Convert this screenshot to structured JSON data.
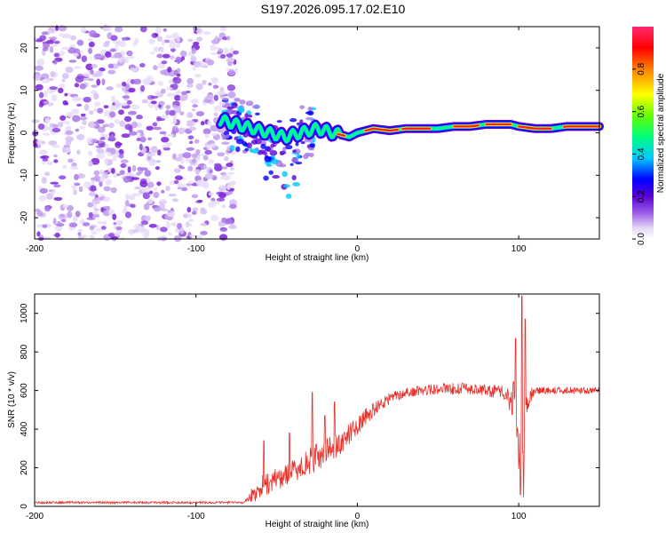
{
  "title": "S197.2026.095.17.02.E10",
  "colors": {
    "axis": "#000000",
    "snr_line": "#e8302a",
    "colormap": [
      "#ffffff",
      "#e6d9f7",
      "#b98ae9",
      "#8a2be2",
      "#5a00d8",
      "#0000ff",
      "#00c8ff",
      "#00ff80",
      "#80ff00",
      "#ffff00",
      "#ff8000",
      "#ff0000",
      "#ff2a6e"
    ]
  },
  "chart_data": [
    {
      "type": "heatmap",
      "xlabel": "Height of straight line (km)",
      "ylabel": "Frequency (Hz)",
      "xlim": [
        -200,
        150
      ],
      "ylim": [
        -25,
        25
      ],
      "xticks": [
        -200,
        -100,
        0,
        100
      ],
      "xtick_labels": [
        "-200",
        "-100",
        "0",
        "100"
      ],
      "yticks": [
        20,
        10,
        0,
        -10,
        -20
      ],
      "ytick_labels": [
        "20",
        "10",
        "0",
        "-10",
        "-20"
      ],
      "ridge": {
        "x": [
          -85,
          -75,
          -65,
          -55,
          -45,
          -35,
          -25,
          -15,
          -5,
          0,
          10,
          20,
          30,
          40,
          50,
          60,
          70,
          80,
          90,
          95,
          100,
          110,
          120,
          130,
          140,
          150
        ],
        "freq": [
          3,
          2,
          1,
          0,
          -1,
          0,
          1,
          0,
          -1,
          0,
          1,
          0.5,
          1,
          1,
          1,
          1.5,
          1.5,
          2,
          2,
          2,
          1.5,
          1,
          1,
          1.5,
          1.5,
          1.5
        ]
      },
      "noise_region_x": [
        -200,
        -75
      ]
    },
    {
      "type": "colorbar",
      "label": "Normalized spectral amplitude",
      "range": [
        0.0,
        1.0
      ],
      "ticks": [
        0.0,
        0.2,
        0.4,
        0.6,
        0.8
      ],
      "tick_labels": [
        "0.0",
        "0.2",
        "0.4",
        "0.6",
        "0.8"
      ]
    },
    {
      "type": "line",
      "xlabel": "Height of straight line (km)",
      "ylabel": "SNR (10 * v/v)",
      "xlim": [
        -200,
        150
      ],
      "ylim": [
        0,
        1100
      ],
      "xticks": [
        -200,
        -100,
        0,
        100
      ],
      "xtick_labels": [
        "-200",
        "-100",
        "0",
        "100"
      ],
      "yticks": [
        0,
        200,
        400,
        600,
        800,
        1000
      ],
      "ytick_labels": [
        "0",
        "200",
        "400",
        "600",
        "800",
        "1000"
      ],
      "envelope": {
        "x": [
          -200,
          -70,
          -65,
          -60,
          -50,
          -40,
          -30,
          -20,
          -10,
          0,
          10,
          20,
          30,
          50,
          70,
          90,
          97,
          100,
          103,
          106,
          110,
          130,
          150
        ],
        "base": [
          20,
          20,
          60,
          100,
          140,
          180,
          230,
          280,
          330,
          420,
          500,
          560,
          590,
          610,
          610,
          590,
          550,
          300,
          250,
          560,
          600,
          600,
          600
        ],
        "noise": [
          12,
          12,
          80,
          120,
          120,
          120,
          140,
          140,
          120,
          100,
          80,
          60,
          50,
          60,
          60,
          70,
          200,
          400,
          500,
          120,
          40,
          35,
          35
        ]
      },
      "spikes": [
        {
          "x": -58,
          "y": 340
        },
        {
          "x": -42,
          "y": 380
        },
        {
          "x": -28,
          "y": 590
        },
        {
          "x": -20,
          "y": 470
        },
        {
          "x": -14,
          "y": 540
        },
        {
          "x": 98,
          "y": 870
        },
        {
          "x": 102,
          "y": 1090
        },
        {
          "x": 104,
          "y": 970
        },
        {
          "x": 101,
          "y": 60
        }
      ]
    }
  ]
}
